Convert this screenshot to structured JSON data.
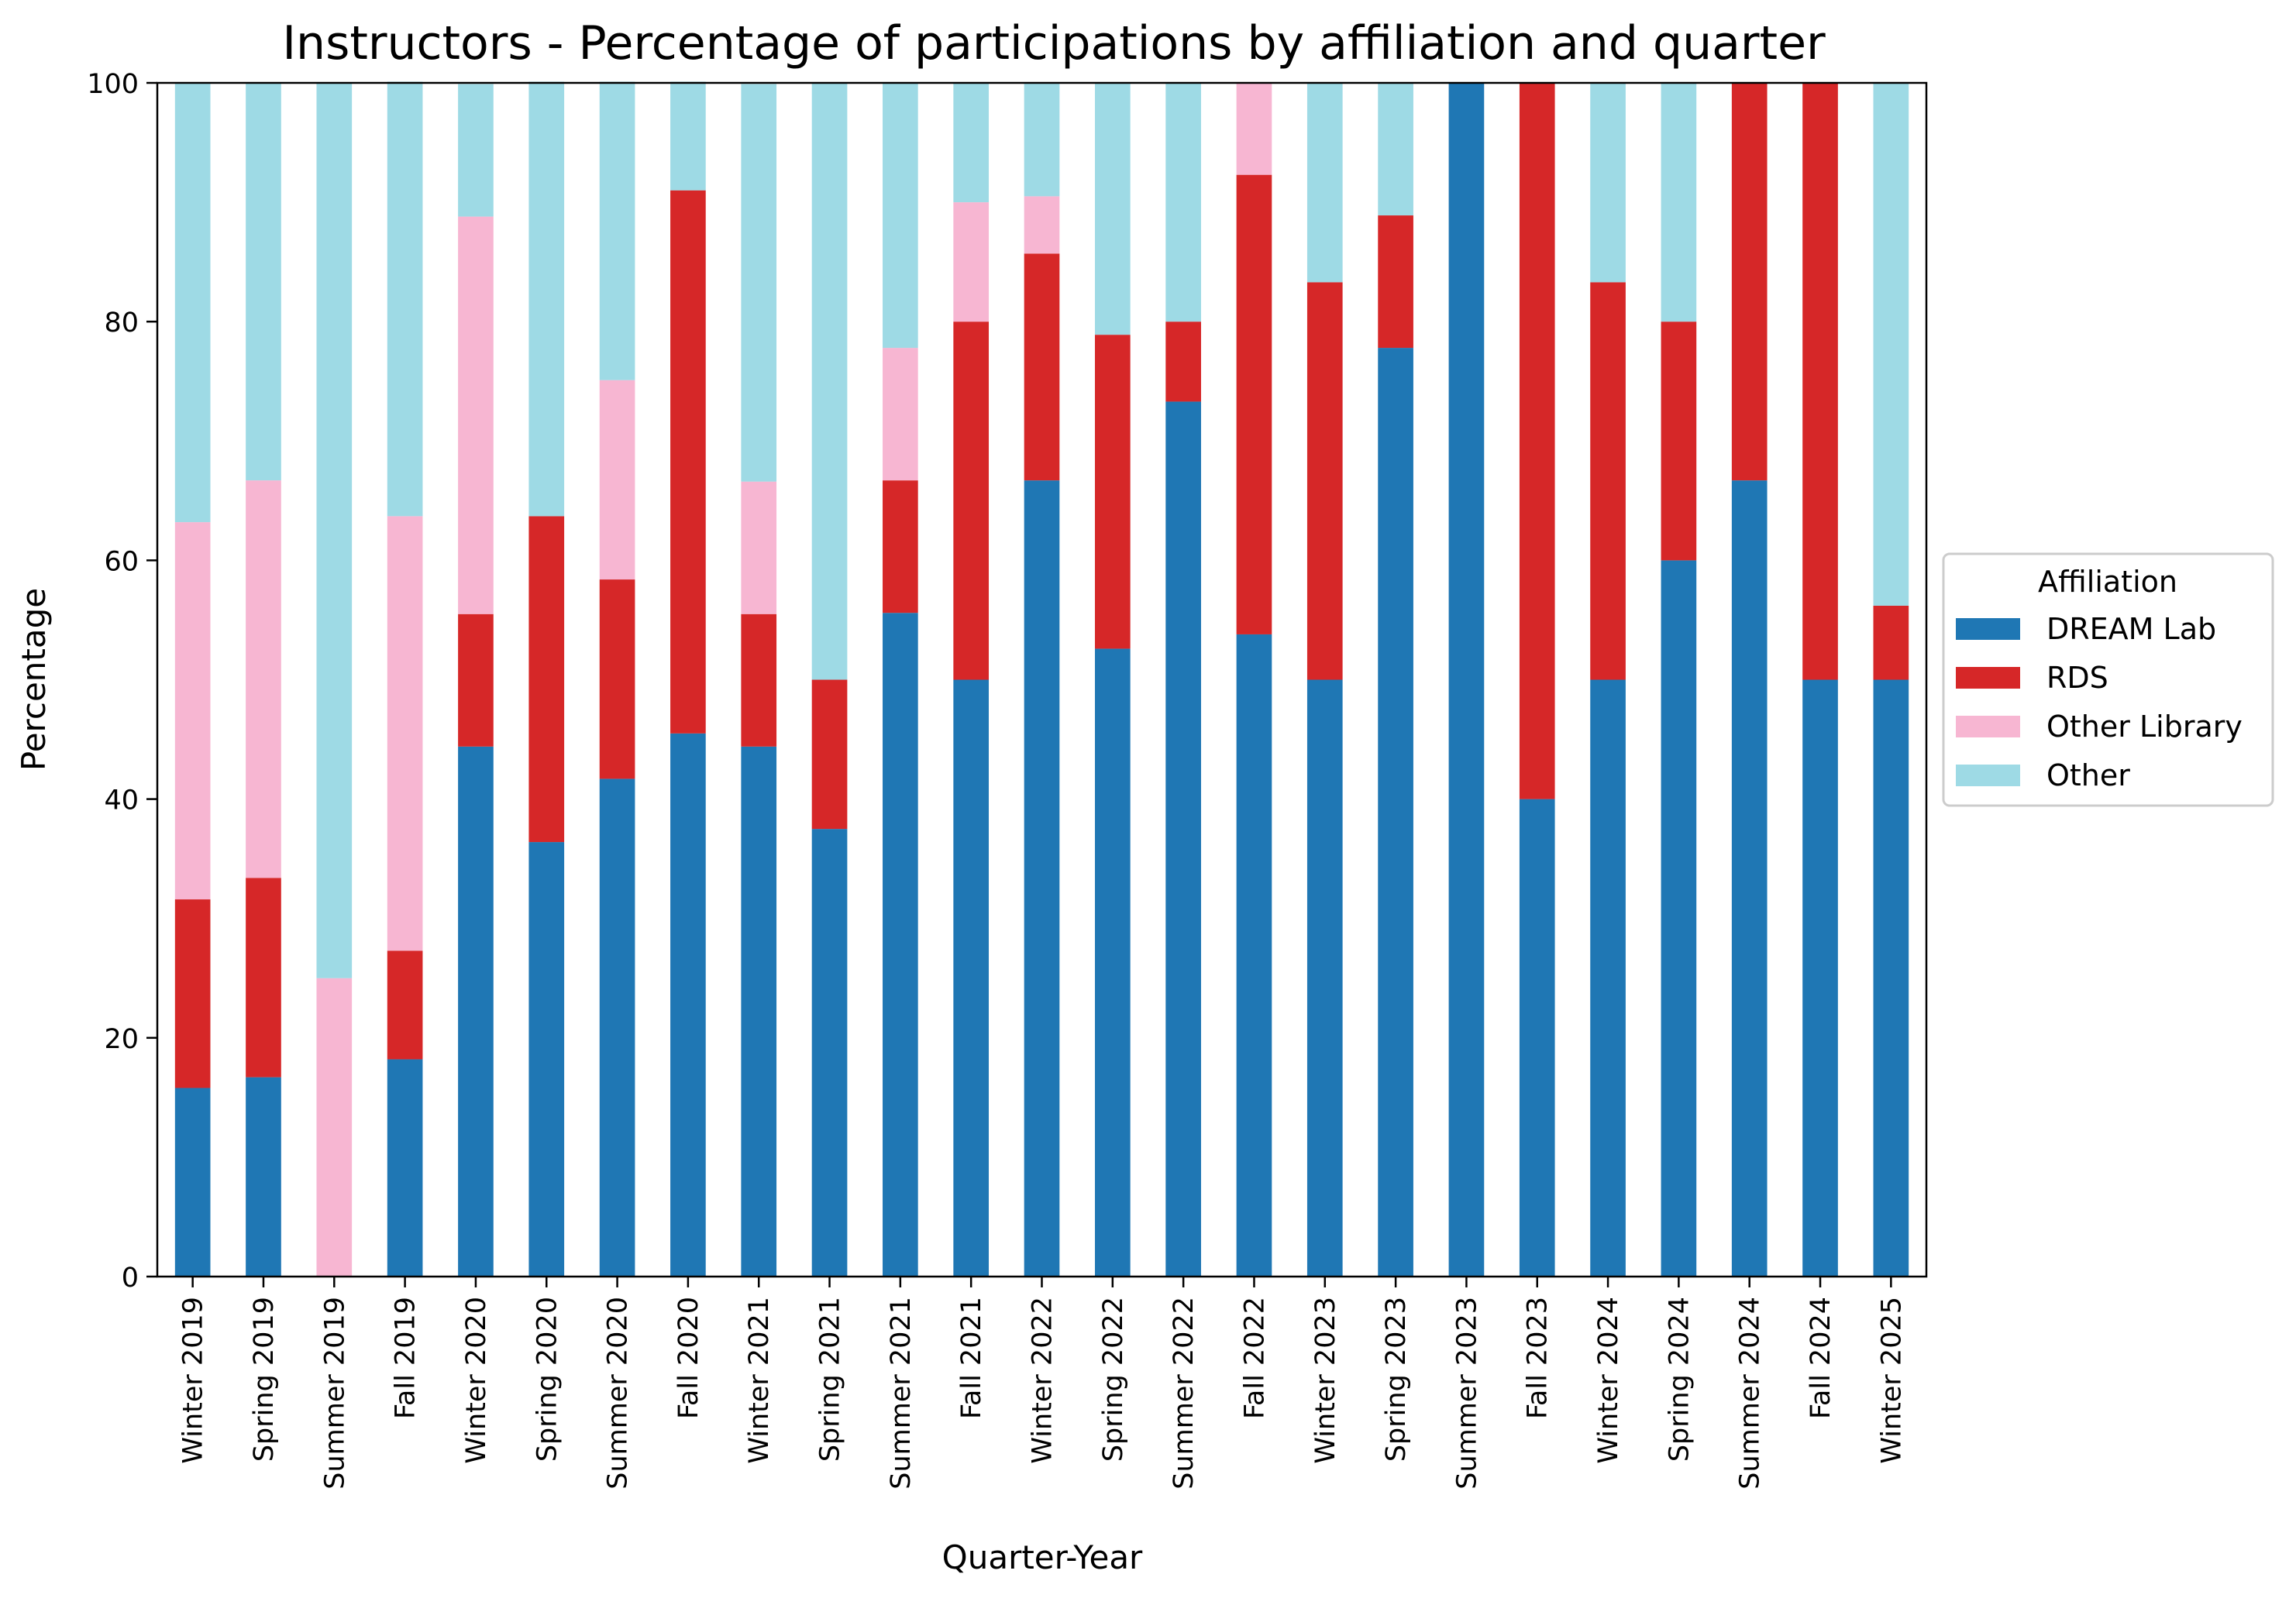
{
  "chart_data": {
    "type": "bar",
    "stacked": true,
    "title": "Instructors - Percentage of participations by affiliation and quarter",
    "xlabel": "Quarter-Year",
    "ylabel": "Percentage",
    "ylim": [
      0,
      100
    ],
    "yticks": [
      0,
      20,
      40,
      60,
      80,
      100
    ],
    "grid": false,
    "legend": {
      "title": "Affiliation",
      "placement": "right, outside plot, vertically centered"
    },
    "categories": [
      "Winter 2019",
      "Spring 2019",
      "Summer 2019",
      "Fall 2019",
      "Winter 2020",
      "Spring 2020",
      "Summer 2020",
      "Fall 2020",
      "Winter 2021",
      "Spring 2021",
      "Summer 2021",
      "Fall 2021",
      "Winter 2022",
      "Spring 2022",
      "Summer 2022",
      "Fall 2022",
      "Winter 2023",
      "Spring 2023",
      "Summer 2023",
      "Fall 2023",
      "Winter 2024",
      "Spring 2024",
      "Summer 2024",
      "Fall 2024",
      "Winter 2025"
    ],
    "series": [
      {
        "name": "DREAM Lab",
        "color": "#1f77b4",
        "values": [
          15.8,
          16.7,
          0,
          18.2,
          44.4,
          36.4,
          41.7,
          45.5,
          44.4,
          37.5,
          55.6,
          50,
          66.7,
          52.6,
          73.3,
          53.8,
          50,
          77.8,
          100,
          40,
          50,
          60,
          66.7,
          50,
          50
        ]
      },
      {
        "name": "RDS",
        "color": "#d62728",
        "values": [
          15.8,
          16.7,
          0,
          9.1,
          11.1,
          27.3,
          16.7,
          45.5,
          11.1,
          12.5,
          11.1,
          30,
          19,
          26.3,
          6.7,
          38.5,
          33.3,
          11.1,
          0,
          60,
          33.3,
          20,
          33.3,
          50,
          6.2
        ]
      },
      {
        "name": "Other Library",
        "color": "#f7b6d2",
        "values": [
          31.6,
          33.3,
          25,
          36.4,
          33.3,
          0,
          16.7,
          0,
          11.1,
          0,
          11.1,
          10,
          4.8,
          0,
          0,
          7.7,
          0,
          0,
          0,
          0,
          0,
          0,
          0,
          0,
          0
        ]
      },
      {
        "name": "Other",
        "color": "#9edae5",
        "values": [
          36.8,
          33.3,
          75,
          36.4,
          11.1,
          36.4,
          25,
          9.1,
          33.3,
          50,
          22.2,
          10,
          9.5,
          21.1,
          20,
          0,
          16.7,
          11.1,
          0,
          0,
          16.7,
          20,
          0,
          0,
          43.8
        ]
      }
    ]
  }
}
